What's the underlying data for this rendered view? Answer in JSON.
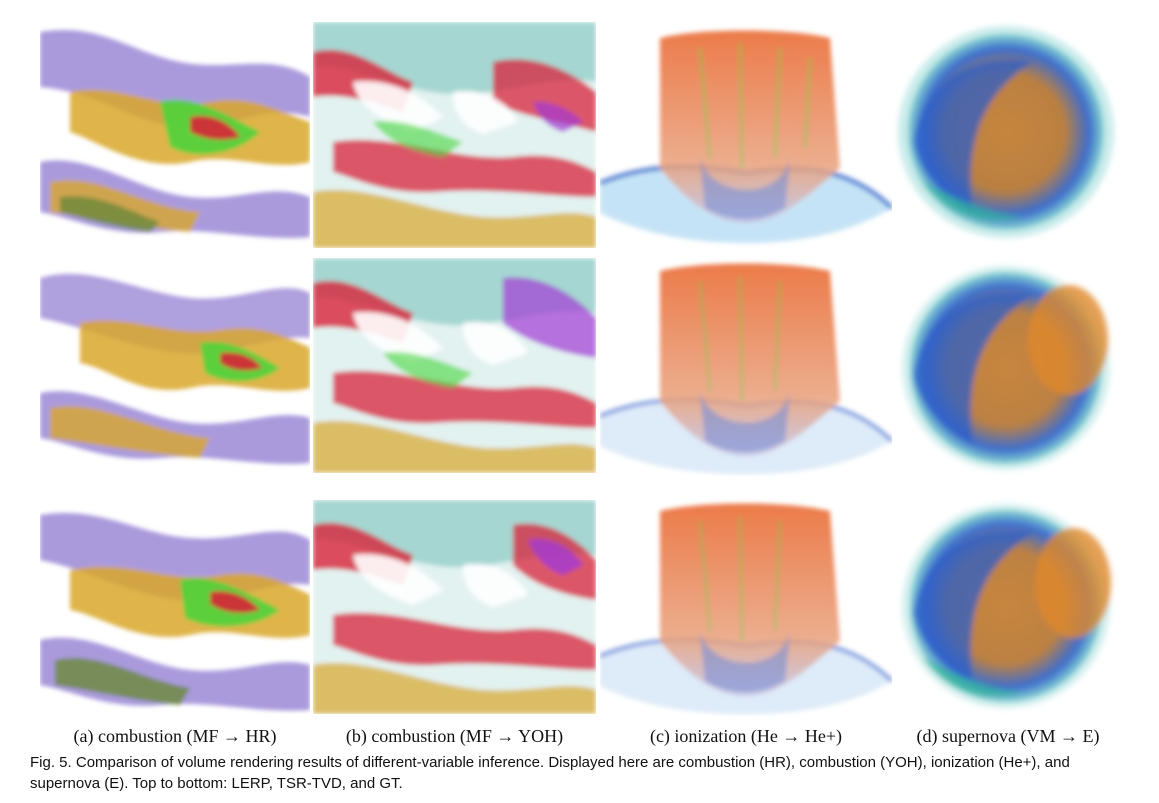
{
  "figure": {
    "columns": [
      {
        "label": "(a) combustion (MF → HR)",
        "kind": "combustion-hr"
      },
      {
        "label": "(b) combustion (MF → YOH)",
        "kind": "combustion-yoh"
      },
      {
        "label": "(c) ionization (He → He+)",
        "kind": "ionization"
      },
      {
        "label": "(d) supernova (VM → E)",
        "kind": "supernova"
      }
    ],
    "caption_prefix": "Fig. 5.",
    "caption_text": "Comparison of volume rendering results of different-variable inference. Displayed here are combustion (HR), combustion (YOH), ionization (He+), and supernova (E). Top to bottom: LERP, TSR-TVD, and GT.",
    "colors": {
      "purple": "#9b88d6",
      "gold": "#d9a72c",
      "green": "#45d63a",
      "red": "#d8233a",
      "teal": "#7fd3cf",
      "orange": "#e9642a",
      "blue": "#2c5fc9",
      "copper": "#c67a2b"
    }
  }
}
